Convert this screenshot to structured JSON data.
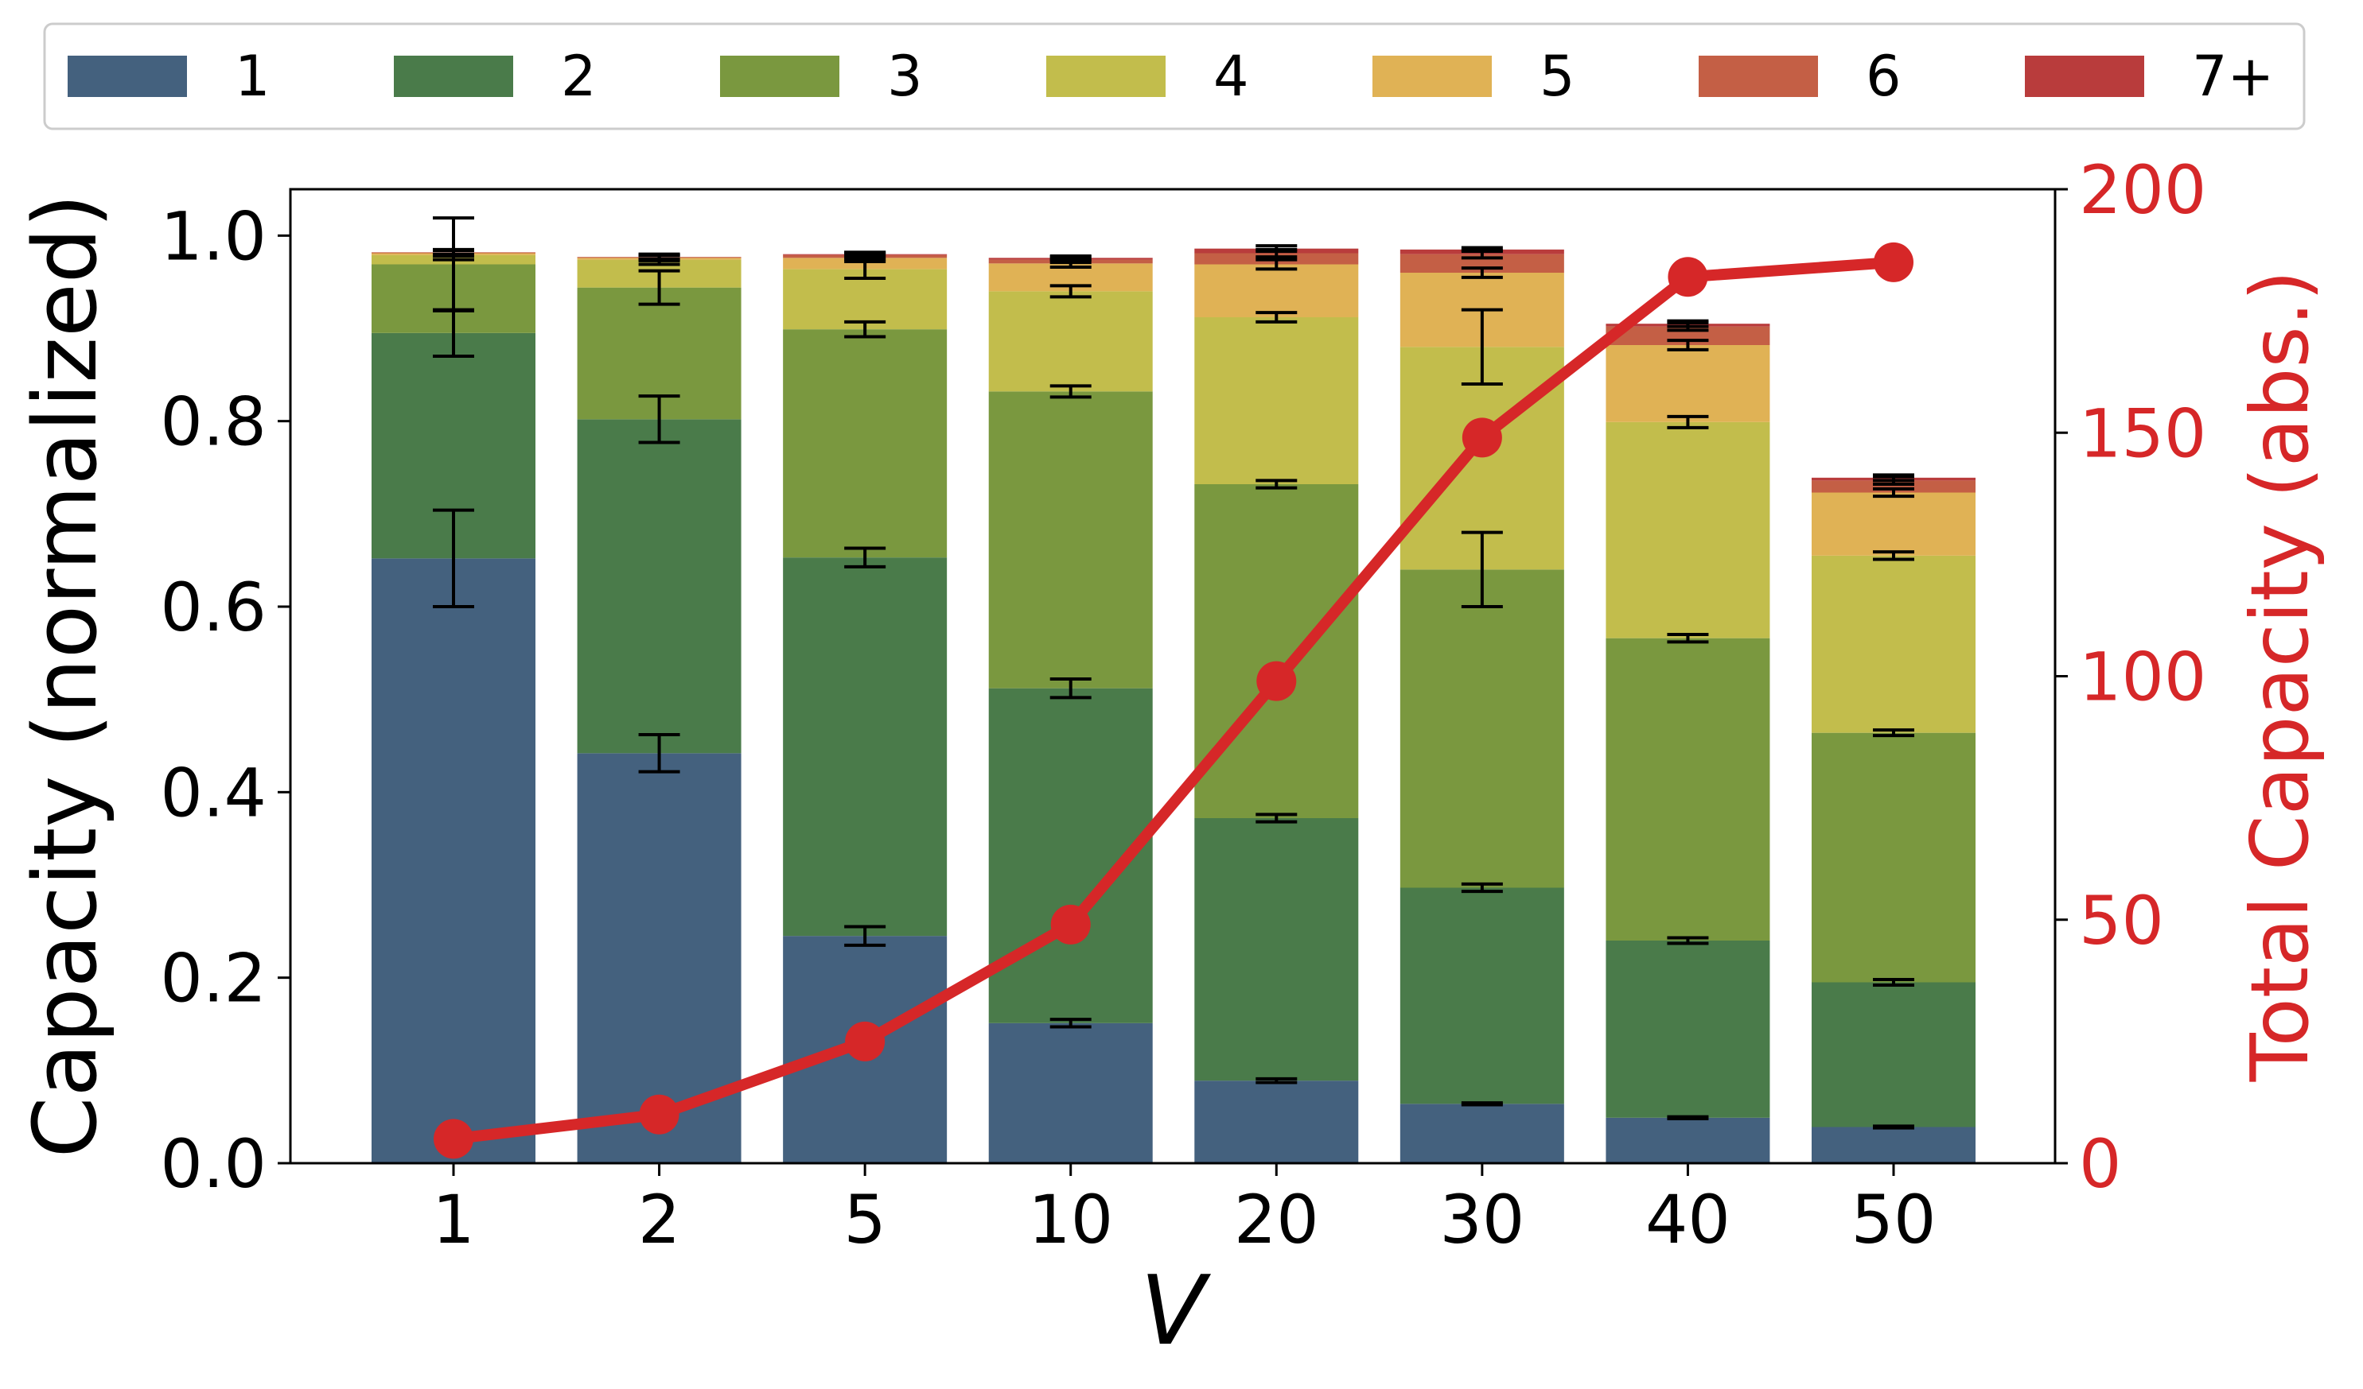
{
  "chart_data": {
    "type": "bar",
    "stacked": true,
    "categories": [
      "1",
      "2",
      "5",
      "10",
      "20",
      "30",
      "40",
      "50"
    ],
    "xlabel": "V",
    "ylabel": "Capacity (normalized)",
    "ylim": [
      0,
      1.05
    ],
    "yticks": [
      "0.0",
      "0.2",
      "0.4",
      "0.6",
      "0.8",
      "1.0"
    ],
    "legend": {
      "placement": "top",
      "entries": [
        "1",
        "2",
        "3",
        "4",
        "5",
        "6",
        "7+"
      ]
    },
    "series": [
      {
        "name": "1",
        "color": "#44617e",
        "values": [
          0.652,
          0.442,
          0.245,
          0.151,
          0.089,
          0.064,
          0.049,
          0.039
        ],
        "errors": [
          0.052,
          0.02,
          0.01,
          0.004,
          0.002,
          0.001,
          0.001,
          0.001
        ]
      },
      {
        "name": "2",
        "color": "#4a7b4a",
        "values": [
          0.243,
          0.36,
          0.408,
          0.361,
          0.283,
          0.233,
          0.191,
          0.156
        ],
        "errors": [
          0.025,
          0.025,
          0.01,
          0.01,
          0.004,
          0.004,
          0.003,
          0.003
        ]
      },
      {
        "name": "3",
        "color": "#7a983f",
        "values": [
          0.074,
          0.142,
          0.246,
          0.32,
          0.36,
          0.343,
          0.326,
          0.269
        ],
        "errors": [
          0.05,
          0.018,
          0.008,
          0.006,
          0.004,
          0.04,
          0.004,
          0.003
        ]
      },
      {
        "name": "4",
        "color": "#c2bd4c",
        "values": [
          0.01,
          0.03,
          0.065,
          0.108,
          0.18,
          0.24,
          0.233,
          0.191
        ],
        "errors": [
          0.005,
          0.005,
          0.01,
          0.006,
          0.005,
          0.04,
          0.006,
          0.004
        ]
      },
      {
        "name": "5",
        "color": "#e0b255",
        "values": [
          0.002,
          0.002,
          0.012,
          0.03,
          0.057,
          0.08,
          0.083,
          0.068
        ],
        "errors": [
          0.003,
          0.003,
          0.004,
          0.004,
          0.005,
          0.005,
          0.005,
          0.004
        ]
      },
      {
        "name": "6",
        "color": "#c45f45",
        "values": [
          0.001,
          0.001,
          0.003,
          0.004,
          0.012,
          0.02,
          0.02,
          0.013
        ],
        "errors": [
          0.003,
          0.003,
          0.003,
          0.003,
          0.004,
          0.004,
          0.004,
          0.004
        ]
      },
      {
        "name": "7+",
        "color": "#b93c3c",
        "values": [
          0.0,
          0.0,
          0.001,
          0.002,
          0.005,
          0.005,
          0.003,
          0.003
        ],
        "errors": [
          0.002,
          0.002,
          0.002,
          0.002,
          0.003,
          0.002,
          0.003,
          0.003
        ]
      }
    ],
    "secondary_axis": {
      "type": "line",
      "name": "Total Capacity (abs.)",
      "ylabel": "Total Capacity (abs.)",
      "color": "#d62728",
      "ylim": [
        0,
        200
      ],
      "yticks": [
        "0",
        "50",
        "100",
        "150",
        "200"
      ],
      "values": [
        5,
        10,
        25,
        49,
        99,
        149,
        182,
        185
      ]
    }
  }
}
